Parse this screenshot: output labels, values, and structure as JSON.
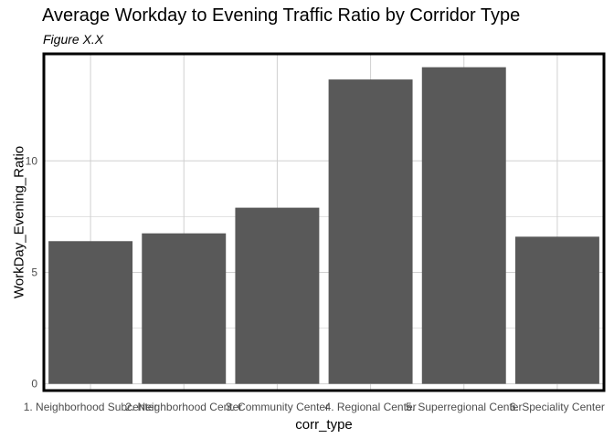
{
  "title": "Average Workday to Evening Traffic Ratio by Corridor Type",
  "subtitle": "Figure X.X",
  "chart_data": {
    "type": "bar",
    "categories": [
      "1. Neighborhood Subcenter",
      "2. Neighborhood Center",
      "3. Community Center",
      "4. Regional Center",
      "5. Superregional Center",
      "6. Speciality Center"
    ],
    "values": [
      6.4,
      6.75,
      7.9,
      13.65,
      14.2,
      6.6
    ],
    "xlabel": "corr_type",
    "ylabel": "WorkDay_Evening_Ratio",
    "yticks": [
      0,
      5,
      10
    ],
    "ylim": [
      -0.3,
      14.8
    ],
    "grid": true,
    "bar_color": "#595959",
    "grid_color": "#d0d0d0",
    "border_color": "#000000"
  }
}
